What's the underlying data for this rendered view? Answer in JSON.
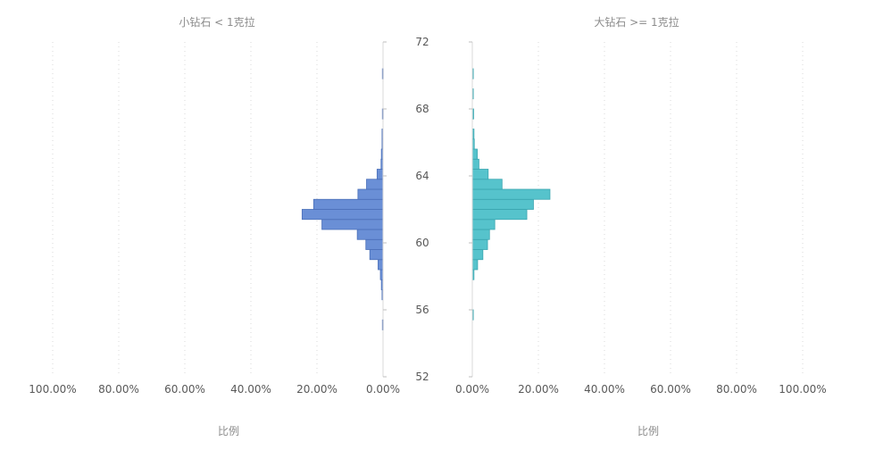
{
  "chart_data": {
    "type": "bar",
    "orientation": "horizontal-mirrored",
    "y_axis": {
      "label": "",
      "ticks": [
        52,
        56,
        60,
        64,
        68,
        72
      ],
      "range": [
        52,
        72
      ]
    },
    "x_axis": {
      "label": "比例",
      "ticks": [
        0,
        20,
        40,
        60,
        80,
        100
      ],
      "tick_labels": [
        "0.00%",
        "20.00%",
        "40.00%",
        "60.00%",
        "80.00%",
        "100.00%"
      ],
      "range": [
        0,
        100
      ]
    },
    "grid": "vertical-dotted",
    "bin_width": 0.6,
    "panels": [
      {
        "title": "小钻石 < 1克拉",
        "color": "#6a8fd6",
        "stroke": "#4a6fb8",
        "direction": "left",
        "bins": [
          {
            "start": 54.8,
            "value": 0.2
          },
          {
            "start": 56.6,
            "value": 0.3
          },
          {
            "start": 57.2,
            "value": 0.5
          },
          {
            "start": 57.8,
            "value": 0.8
          },
          {
            "start": 58.4,
            "value": 1.5
          },
          {
            "start": 59.0,
            "value": 4.0
          },
          {
            "start": 59.6,
            "value": 5.2
          },
          {
            "start": 60.2,
            "value": 7.8
          },
          {
            "start": 60.8,
            "value": 18.5
          },
          {
            "start": 61.4,
            "value": 24.5
          },
          {
            "start": 62.0,
            "value": 21.0
          },
          {
            "start": 62.6,
            "value": 7.6
          },
          {
            "start": 63.2,
            "value": 5.0
          },
          {
            "start": 63.8,
            "value": 1.8
          },
          {
            "start": 64.4,
            "value": 0.6
          },
          {
            "start": 65.0,
            "value": 0.5
          },
          {
            "start": 65.6,
            "value": 0.3
          },
          {
            "start": 66.2,
            "value": 0.3
          },
          {
            "start": 67.4,
            "value": 0.2
          },
          {
            "start": 69.8,
            "value": 0.2
          }
        ]
      },
      {
        "title": "大钻石 >= 1克拉",
        "color": "#56c3cc",
        "stroke": "#3aa6b0",
        "direction": "right",
        "bins": [
          {
            "start": 55.4,
            "value": 0.3
          },
          {
            "start": 57.8,
            "value": 0.5
          },
          {
            "start": 58.4,
            "value": 1.6
          },
          {
            "start": 59.0,
            "value": 3.2
          },
          {
            "start": 59.6,
            "value": 4.6
          },
          {
            "start": 60.2,
            "value": 5.2
          },
          {
            "start": 60.8,
            "value": 6.8
          },
          {
            "start": 61.4,
            "value": 16.5
          },
          {
            "start": 62.0,
            "value": 18.5
          },
          {
            "start": 62.6,
            "value": 23.5
          },
          {
            "start": 63.2,
            "value": 9.0
          },
          {
            "start": 63.8,
            "value": 4.8
          },
          {
            "start": 64.4,
            "value": 2.0
          },
          {
            "start": 65.0,
            "value": 1.5
          },
          {
            "start": 65.6,
            "value": 0.6
          },
          {
            "start": 66.2,
            "value": 0.5
          },
          {
            "start": 67.4,
            "value": 0.4
          },
          {
            "start": 68.6,
            "value": 0.3
          },
          {
            "start": 69.8,
            "value": 0.3
          }
        ]
      }
    ]
  }
}
